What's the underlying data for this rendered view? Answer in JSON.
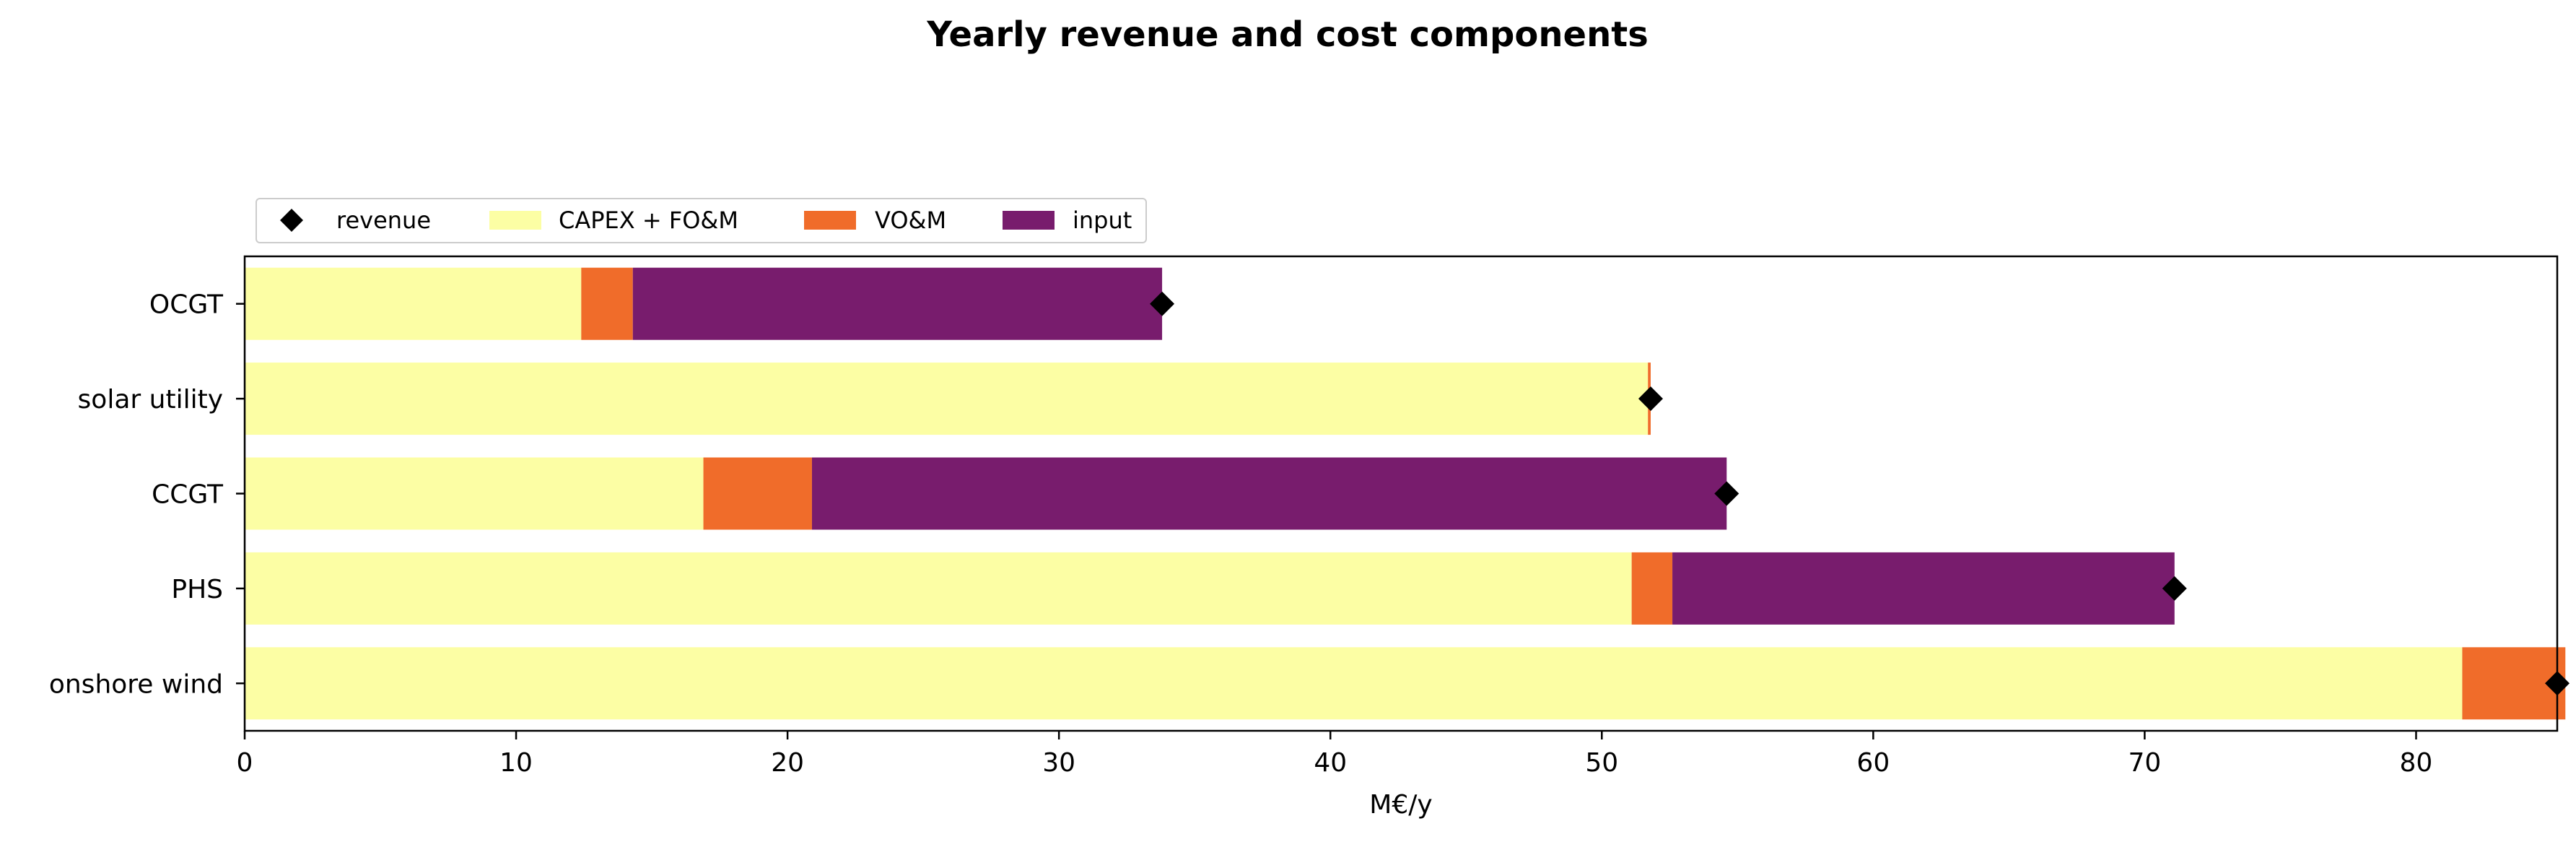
{
  "chart_data": {
    "type": "bar",
    "orientation": "horizontal",
    "stacked": true,
    "title": "Yearly revenue and cost components",
    "xlabel": "M€/y",
    "ylabel": "",
    "xlim": [
      0,
      85.2
    ],
    "xticks": [
      0,
      10,
      20,
      30,
      40,
      50,
      60,
      70,
      80
    ],
    "grid": false,
    "legend_position": "top-left",
    "categories": [
      "OCGT",
      "solar utility",
      "CCGT",
      "PHS",
      "onshore wind"
    ],
    "series": [
      {
        "name": "CAPEX + FO&M",
        "color": "#fcfea4",
        "values": [
          12.4,
          51.7,
          16.9,
          51.1,
          81.7
        ]
      },
      {
        "name": "VO&M",
        "color": "#f06c2a",
        "values": [
          1.9,
          0.1,
          4.0,
          1.5,
          3.8
        ]
      },
      {
        "name": "input",
        "color": "#781c6d",
        "values": [
          19.5,
          0.0,
          33.7,
          18.5,
          0.0
        ]
      }
    ],
    "revenue": {
      "name": "revenue",
      "marker": "diamond",
      "color": "#000000",
      "values": [
        33.8,
        51.8,
        54.6,
        71.1,
        85.2
      ]
    }
  }
}
